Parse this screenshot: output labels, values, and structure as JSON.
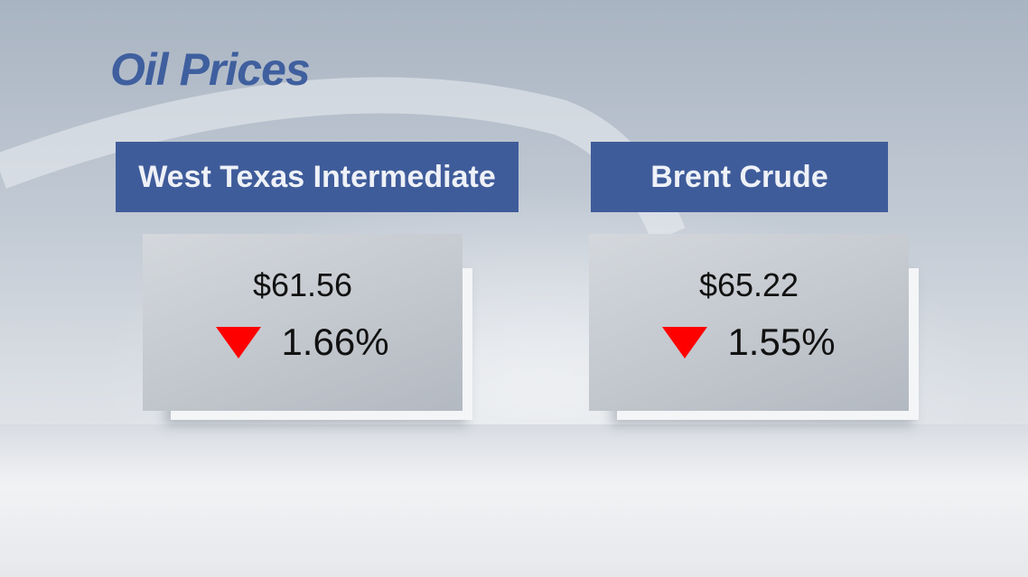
{
  "title": "Oil Prices",
  "colors": {
    "header_bg": "#3f5c9a",
    "title": "#3f5f9e",
    "down": "#ff0000"
  },
  "benchmarks": [
    {
      "name": "West Texas Intermediate",
      "price": "$61.56",
      "change": "1.66%",
      "direction_icon": "down-triangle-icon"
    },
    {
      "name": "Brent Crude",
      "price": "$65.22",
      "change": "1.55%",
      "direction_icon": "down-triangle-icon"
    }
  ]
}
